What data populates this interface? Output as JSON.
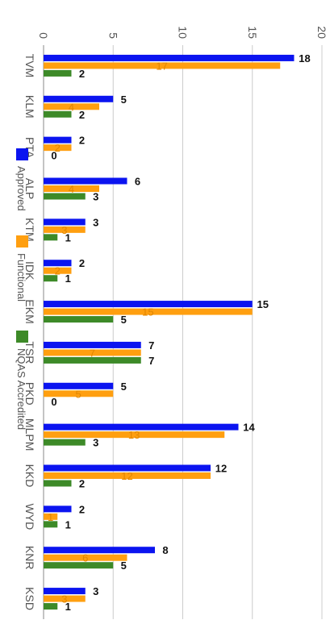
{
  "chart_data": {
    "type": "bar",
    "orientation": "rotated-90-clockwise",
    "categories": [
      "TVM",
      "KLM",
      "PTA",
      "ALP",
      "KTM",
      "IDK",
      "EKM",
      "TSR",
      "PKD",
      "MLPM",
      "KKD",
      "WYD",
      "KNR",
      "KSD"
    ],
    "series": [
      {
        "name": "Approved",
        "color": "#0b14f0",
        "values": [
          18,
          5,
          2,
          6,
          3,
          2,
          15,
          7,
          5,
          14,
          12,
          2,
          8,
          3
        ]
      },
      {
        "name": "Functional",
        "color": "#ff9f10",
        "values": [
          17,
          4,
          2,
          4,
          3,
          2,
          15,
          7,
          5,
          13,
          12,
          1,
          6,
          3
        ]
      },
      {
        "name": "NQAS Accredited",
        "color": "#3d8a28",
        "values": [
          2,
          2,
          0,
          3,
          1,
          1,
          5,
          7,
          0,
          3,
          2,
          1,
          5,
          1
        ]
      }
    ],
    "value_axis": {
      "min": 0,
      "max": 20,
      "ticks": [
        0,
        5,
        10,
        15,
        20
      ]
    },
    "grid": true,
    "legend": {
      "placement": "top"
    }
  }
}
